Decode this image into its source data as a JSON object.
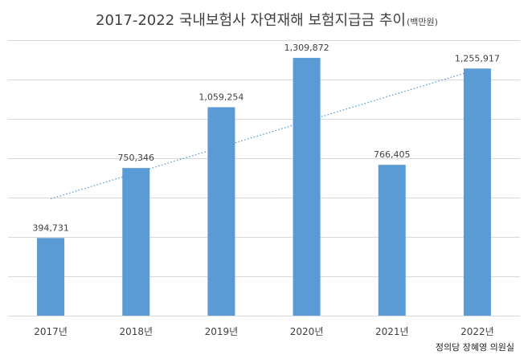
{
  "chart_data": {
    "type": "bar",
    "title": "2017-2022 국내보험사 자연재해 보험지급금 추이",
    "title_unit": "(백만원)",
    "categories": [
      "2017년",
      "2018년",
      "2019년",
      "2020년",
      "2021년",
      "2022년"
    ],
    "values": [
      394731,
      750346,
      1059254,
      1309872,
      766405,
      1255917
    ],
    "value_labels": [
      "394,731",
      "750,346",
      "1,059,254",
      "1,309,872",
      "766,405",
      "1,255,917"
    ],
    "ylim": [
      0,
      1400000
    ],
    "grid": true,
    "y_tick_labels_shown": false,
    "trendline": {
      "type": "linear",
      "style": "dotted"
    },
    "bar_color": "#5b9bd5",
    "trend_color": "#5b9bd5"
  },
  "source": "정의당 장혜영 의원실"
}
